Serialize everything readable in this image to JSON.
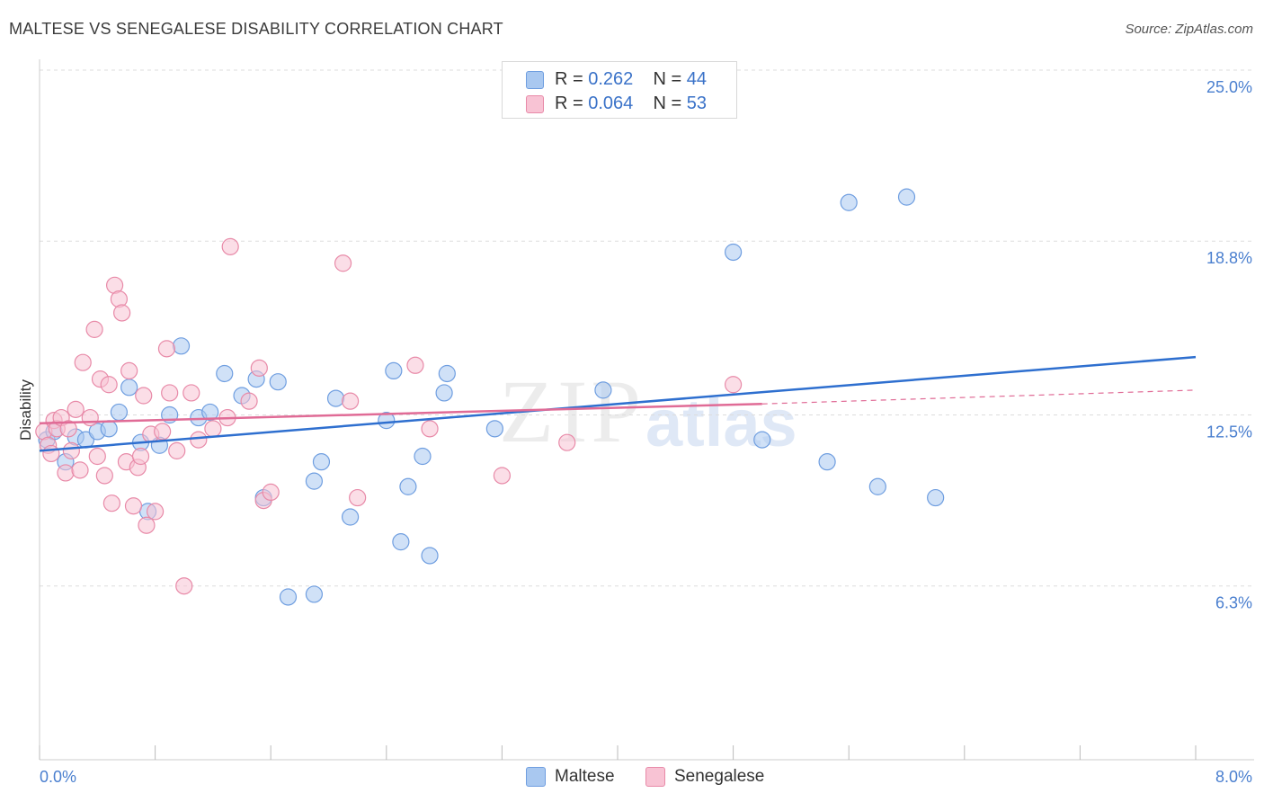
{
  "title": "MALTESE VS SENEGALESE DISABILITY CORRELATION CHART",
  "source": "Source: ZipAtlas.com",
  "watermark": {
    "zip": "ZIP",
    "atlas": "atlas"
  },
  "legend": {
    "rows": [
      {
        "r_label": "R =",
        "r_value": "0.262",
        "n_label": "N =",
        "n_value": "44",
        "color": "#a9c8f0",
        "border": "#6f9ee0"
      },
      {
        "r_label": "R =",
        "r_value": "0.064",
        "n_label": "N =",
        "n_value": "53",
        "color": "#f8c3d4",
        "border": "#e88aa8"
      }
    ]
  },
  "bottom_legend": [
    {
      "label": "Maltese",
      "color": "#a9c8f0",
      "border": "#6f9ee0"
    },
    {
      "label": "Senegalese",
      "color": "#f8c3d4",
      "border": "#e88aa8"
    }
  ],
  "chart_data": {
    "type": "scatter",
    "title": "MALTESE VS SENEGALESE DISABILITY CORRELATION CHART",
    "xlabel": "",
    "ylabel": "Disability",
    "xlim": [
      0,
      8.0
    ],
    "ylim": [
      0,
      25.0
    ],
    "x_tick_labels": [
      "0.0%",
      "8.0%"
    ],
    "y_tick_values": [
      6.3,
      12.5,
      18.8,
      25.0
    ],
    "y_tick_labels": [
      "6.3%",
      "12.5%",
      "18.8%",
      "25.0%"
    ],
    "grid": "horizontal dashed",
    "legend_position": "top-center",
    "series": [
      {
        "name": "Maltese",
        "color": "#6f9ee0",
        "fill": "#a9c8f0",
        "trend": {
          "x": [
            0.0,
            8.0
          ],
          "y": [
            11.2,
            14.6
          ],
          "color": "#2e6fcf"
        },
        "points": [
          [
            0.05,
            11.6
          ],
          [
            0.1,
            11.9
          ],
          [
            0.18,
            10.8
          ],
          [
            0.25,
            11.7
          ],
          [
            0.32,
            11.6
          ],
          [
            0.4,
            11.9
          ],
          [
            0.48,
            12.0
          ],
          [
            0.55,
            12.6
          ],
          [
            0.62,
            13.5
          ],
          [
            0.7,
            11.5
          ],
          [
            0.75,
            9.0
          ],
          [
            0.83,
            11.4
          ],
          [
            0.9,
            12.5
          ],
          [
            0.98,
            15.0
          ],
          [
            1.1,
            12.4
          ],
          [
            1.18,
            12.6
          ],
          [
            1.28,
            14.0
          ],
          [
            1.4,
            13.2
          ],
          [
            1.5,
            13.8
          ],
          [
            1.55,
            9.5
          ],
          [
            1.65,
            13.7
          ],
          [
            1.72,
            5.9
          ],
          [
            1.9,
            10.1
          ],
          [
            1.95,
            10.8
          ],
          [
            2.05,
            13.1
          ],
          [
            2.15,
            8.8
          ],
          [
            2.4,
            12.3
          ],
          [
            2.45,
            14.1
          ],
          [
            2.5,
            7.9
          ],
          [
            2.55,
            9.9
          ],
          [
            2.65,
            11.0
          ],
          [
            2.7,
            7.4
          ],
          [
            2.8,
            13.3
          ],
          [
            2.82,
            14.0
          ],
          [
            3.15,
            12.0
          ],
          [
            3.9,
            13.4
          ],
          [
            4.8,
            18.4
          ],
          [
            5.0,
            11.6
          ],
          [
            5.45,
            10.8
          ],
          [
            5.6,
            20.2
          ],
          [
            5.8,
            9.9
          ],
          [
            6.0,
            20.4
          ],
          [
            6.2,
            9.5
          ],
          [
            1.9,
            6.0
          ]
        ]
      },
      {
        "name": "Senegalese",
        "color": "#e88aa8",
        "fill": "#f8c3d4",
        "trend": {
          "x": [
            0.0,
            5.0
          ],
          "y": [
            12.2,
            12.9
          ],
          "color": "#e06b96"
        },
        "trend_dashed": {
          "x": [
            5.0,
            8.0
          ],
          "y": [
            12.9,
            13.4
          ]
        },
        "points": [
          [
            0.03,
            11.9
          ],
          [
            0.06,
            11.4
          ],
          [
            0.08,
            11.1
          ],
          [
            0.1,
            12.3
          ],
          [
            0.12,
            12.0
          ],
          [
            0.15,
            12.4
          ],
          [
            0.18,
            10.4
          ],
          [
            0.22,
            11.2
          ],
          [
            0.25,
            12.7
          ],
          [
            0.28,
            10.5
          ],
          [
            0.3,
            14.4
          ],
          [
            0.35,
            12.4
          ],
          [
            0.38,
            15.6
          ],
          [
            0.4,
            11.0
          ],
          [
            0.42,
            13.8
          ],
          [
            0.45,
            10.3
          ],
          [
            0.48,
            13.6
          ],
          [
            0.5,
            9.3
          ],
          [
            0.52,
            17.2
          ],
          [
            0.55,
            16.7
          ],
          [
            0.57,
            16.2
          ],
          [
            0.6,
            10.8
          ],
          [
            0.62,
            14.1
          ],
          [
            0.65,
            9.2
          ],
          [
            0.68,
            10.6
          ],
          [
            0.7,
            11.0
          ],
          [
            0.72,
            13.2
          ],
          [
            0.74,
            8.5
          ],
          [
            0.77,
            11.8
          ],
          [
            0.8,
            9.0
          ],
          [
            0.85,
            11.9
          ],
          [
            0.88,
            14.9
          ],
          [
            0.9,
            13.3
          ],
          [
            0.95,
            11.2
          ],
          [
            1.0,
            6.3
          ],
          [
            1.05,
            13.3
          ],
          [
            1.1,
            11.6
          ],
          [
            1.2,
            12.0
          ],
          [
            1.3,
            12.4
          ],
          [
            1.32,
            18.6
          ],
          [
            1.45,
            13.0
          ],
          [
            1.52,
            14.2
          ],
          [
            1.55,
            9.4
          ],
          [
            2.1,
            18.0
          ],
          [
            2.15,
            13.0
          ],
          [
            2.2,
            9.5
          ],
          [
            2.6,
            14.3
          ],
          [
            2.7,
            12.0
          ],
          [
            3.2,
            10.3
          ],
          [
            3.65,
            11.5
          ],
          [
            4.8,
            13.6
          ],
          [
            1.6,
            9.7
          ],
          [
            0.2,
            12.0
          ]
        ]
      }
    ]
  }
}
